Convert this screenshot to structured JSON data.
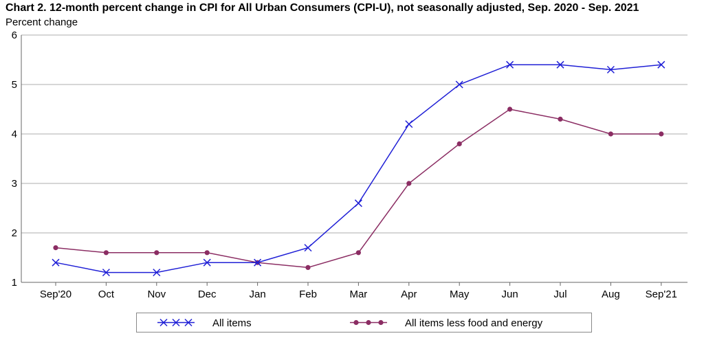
{
  "colors": {
    "all_items": "#1f1fd6",
    "core": "#8b2d63",
    "grid": "#c8c8c8",
    "axis": "#666666"
  },
  "chart_data": {
    "type": "line",
    "title": "Chart 2. 12-month percent change in CPI for All Urban Consumers (CPI-U), not seasonally adjusted, Sep. 2020 - Sep. 2021",
    "ylabel": "Percent change",
    "xlabel": "",
    "categories": [
      "Sep'20",
      "Oct",
      "Nov",
      "Dec",
      "Jan",
      "Feb",
      "Mar",
      "Apr",
      "May",
      "Jun",
      "Jul",
      "Aug",
      "Sep'21"
    ],
    "ylim": [
      1,
      6
    ],
    "yticks": [
      1,
      2,
      3,
      4,
      5,
      6
    ],
    "grid": "horizontal",
    "legend_position": "bottom",
    "series": [
      {
        "name": "All items",
        "marker": "x",
        "values": [
          1.4,
          1.2,
          1.2,
          1.4,
          1.4,
          1.7,
          2.6,
          4.2,
          5.0,
          5.4,
          5.4,
          5.3,
          5.4
        ]
      },
      {
        "name": "All items less food and energy",
        "marker": "dot",
        "values": [
          1.7,
          1.6,
          1.6,
          1.6,
          1.4,
          1.3,
          1.6,
          3.0,
          3.8,
          4.5,
          4.3,
          4.0,
          4.0
        ]
      }
    ]
  }
}
